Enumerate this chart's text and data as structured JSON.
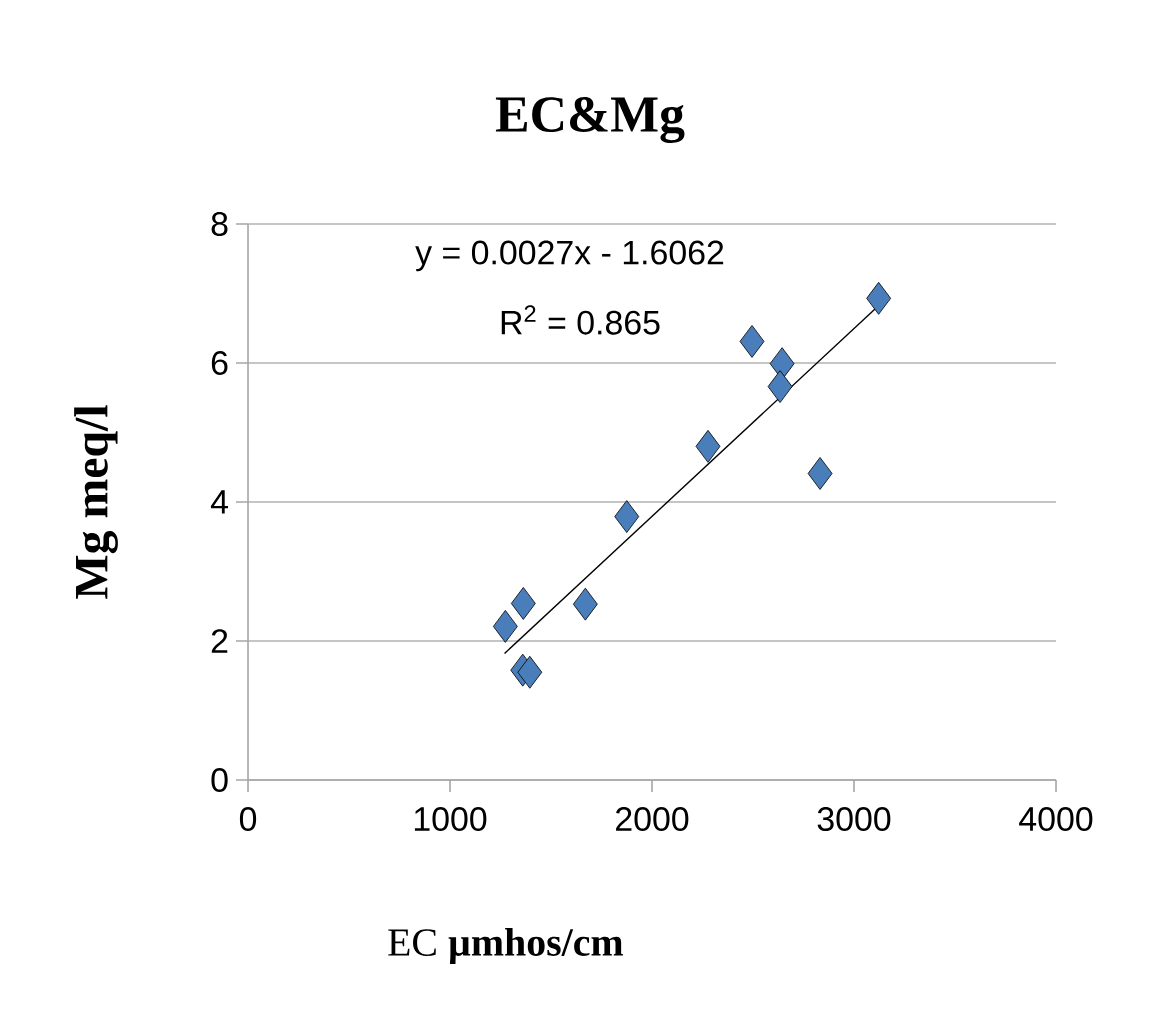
{
  "chart_data": {
    "type": "scatter",
    "title": "EC&Mg",
    "xlabel": "EC        **µmhos/cm**",
    "ylabel": "Mg    meq/l",
    "annotations": [
      "y = 0.0027x - 1.6062",
      "R$^{2}$ = 0.865"
    ],
    "xlim": [
      0,
      4000
    ],
    "ylim": [
      0,
      8
    ],
    "xticks": [
      0,
      1000,
      2000,
      3000,
      4000
    ],
    "yticks": [
      0,
      2,
      4,
      6,
      8
    ],
    "grid": "y",
    "marker": "diamond",
    "series": [
      {
        "color": "#4a7ebb",
        "x": [
          3122,
          2495,
          2644,
          2634,
          2832,
          2277,
          1875,
          1670,
          1363,
          1274,
          1360,
          1395
        ],
        "values": [
          6.93,
          6.31,
          5.99,
          5.66,
          4.41,
          4.8,
          3.79,
          2.53,
          2.54,
          2.21,
          1.58,
          1.55
        ]
      },
      {
        "type": "line",
        "color": "#000000",
        "marker": "none",
        "x": [
          1270,
          3120
        ],
        "values": [
          1.82,
          6.82
        ]
      }
    ]
  }
}
